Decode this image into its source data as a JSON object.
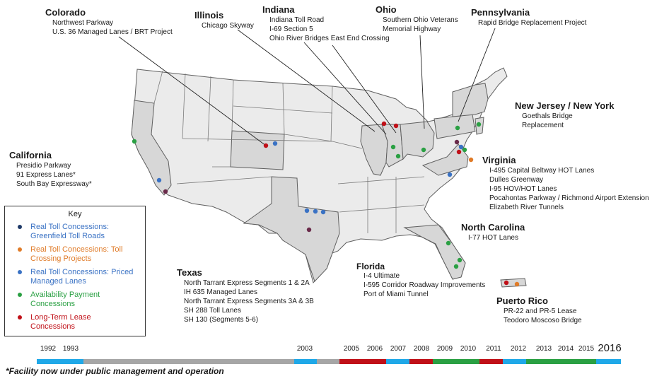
{
  "key": {
    "title": "Key",
    "items": [
      {
        "label": "Real Toll Concessions: Greenfield Toll Roads",
        "color": "#1f3a68"
      },
      {
        "label": "Real Toll Concessions: Toll Crossing Projects",
        "color": "#e07b28"
      },
      {
        "label": "Real Toll Concessions: Priced Managed Lanes",
        "color": "#3a72c4"
      },
      {
        "label": "Availability Payment Concessions",
        "color": "#2aa043"
      },
      {
        "label": "Long-Term Lease Concessions",
        "color": "#c01018"
      }
    ]
  },
  "states": [
    {
      "name": "Colorado",
      "projects": [
        "Northwest Parkway",
        "U.S. 36 Managed Lanes / BRT Project"
      ]
    },
    {
      "name": "Illinois",
      "projects": [
        "Chicago Skyway"
      ]
    },
    {
      "name": "Indiana",
      "projects": [
        "Indiana Toll Road",
        "I-69 Section 5",
        "Ohio River Bridges East End Crossing"
      ]
    },
    {
      "name": "Ohio",
      "projects": [
        "Southern Ohio Veterans",
        "Memorial Highway"
      ]
    },
    {
      "name": "Pennsylvania",
      "projects": [
        "Rapid Bridge Replacement Project"
      ]
    },
    {
      "name": "New Jersey / New York",
      "projects": [
        "Goethals Bridge",
        "Replacement"
      ]
    },
    {
      "name": "California",
      "projects": [
        "Presidio Parkway",
        "91 Express Lanes*",
        "South Bay Expressway*"
      ]
    },
    {
      "name": "Virginia",
      "projects": [
        "I-495 Capital Beltway HOT Lanes",
        "Dulles Greenway",
        "I-95 HOV/HOT Lanes",
        "Pocahontas Parkway / Richmond Airport Extension",
        "Elizabeth River Tunnels"
      ]
    },
    {
      "name": "North Carolina",
      "projects": [
        "I-77 HOT Lanes"
      ]
    },
    {
      "name": "Texas",
      "projects": [
        "North Tarrant Express Segments 1 & 2A",
        "IH 635 Managed Lanes",
        "North Tarrant Express Segments 3A & 3B",
        "SH 288 Toll Lanes",
        "SH 130 (Segments 5-6)"
      ]
    },
    {
      "name": "Florida",
      "projects": [
        "I-4 Ultimate",
        "I-595 Corridor Roadway Improvements",
        "Port of Miami Tunnel"
      ]
    },
    {
      "name": "Puerto Rico",
      "projects": [
        "PR-22 and PR-5 Lease",
        "Teodoro Moscoso Bridge"
      ]
    }
  ],
  "timeline": {
    "years": [
      "1992",
      "1993",
      "2003",
      "2005",
      "2006",
      "2007",
      "2008",
      "2009",
      "2010",
      "2011",
      "2012",
      "2013",
      "2014",
      "2015",
      "2016"
    ],
    "colors": {
      "none": "#a6a6a6",
      "priced": "#1fa8e8",
      "lease": "#c01018",
      "availability": "#2aa043"
    }
  },
  "footnote": "*Facility now under public management and operation"
}
